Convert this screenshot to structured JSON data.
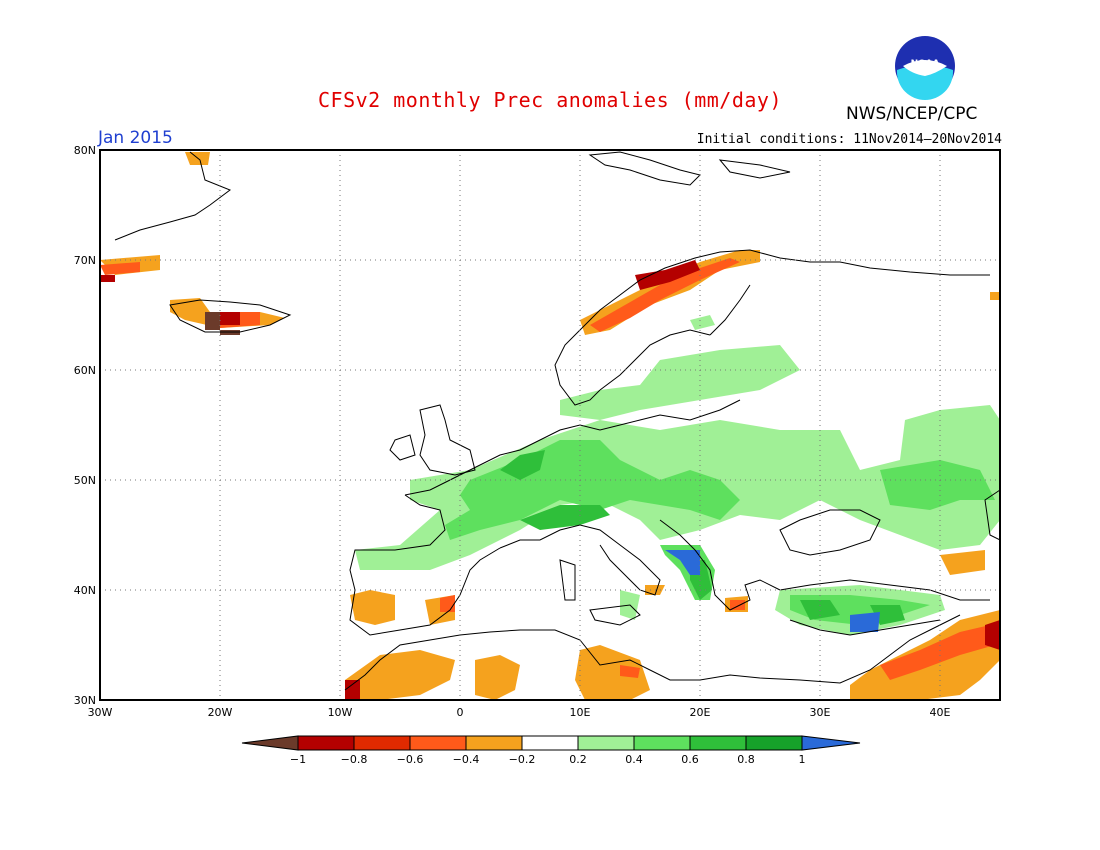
{
  "header": {
    "title": "CFSv2 monthly Prec anomalies (mm/day)",
    "org": "NWS/NCEP/CPC",
    "month": "Jan 2015",
    "initial_conditions": "Initial conditions: 11Nov2014–20Nov2014",
    "logo_icon": "noaa-logo-icon"
  },
  "map": {
    "lat_labels": [
      "80N",
      "70N",
      "60N",
      "50N",
      "40N",
      "30N"
    ],
    "lon_labels": [
      "30W",
      "20W",
      "10W",
      "0",
      "10E",
      "20E",
      "30E",
      "40E"
    ],
    "lat_range": [
      30,
      80
    ],
    "lon_range": [
      -30,
      45
    ],
    "grid": "dotted"
  },
  "legend": {
    "labels": [
      "−1",
      "−0.8",
      "−0.6",
      "−0.4",
      "−0.2",
      "0.2",
      "0.4",
      "0.6",
      "0.8",
      "1"
    ],
    "colors": [
      "#6b3a2a",
      "#b40000",
      "#e02a00",
      "#ff5a1a",
      "#f5a21e",
      "#ffffff",
      "#a0f096",
      "#5ee05e",
      "#2fbf3a",
      "#16a22a",
      "#2a6ad8"
    ]
  },
  "colors": {
    "title": "#e00000",
    "month": "#1f3fd0",
    "ocean": "#ffffff",
    "coast": "#000000"
  }
}
